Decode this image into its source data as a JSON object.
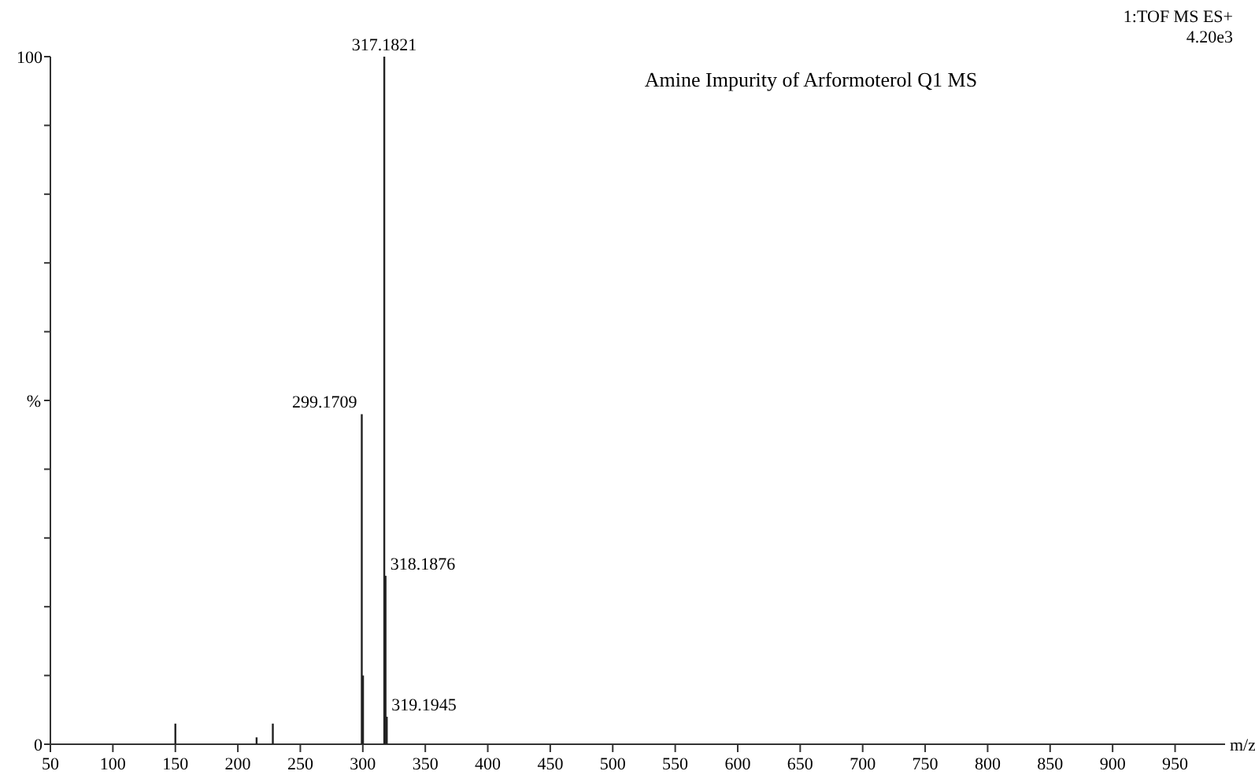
{
  "chart_data": {
    "type": "bar",
    "title": "Amine Impurity of Arformoterol Q1 MS",
    "xlabel": "m/z",
    "ylabel": "%",
    "x": [
      150,
      215,
      228,
      299.1709,
      300.17,
      317.1821,
      318.1876,
      319.1945
    ],
    "values": [
      3,
      1,
      3,
      48,
      10,
      100,
      24.5,
      4
    ],
    "color": "#222222",
    "xlim": [
      50,
      990
    ],
    "xticks": [
      50,
      100,
      150,
      200,
      250,
      300,
      350,
      400,
      450,
      500,
      550,
      600,
      650,
      700,
      750,
      800,
      850,
      900,
      950
    ],
    "ylim": [
      0,
      100
    ],
    "yticks": [
      0,
      {
        "value": 10,
        "label": null
      },
      {
        "value": 20,
        "label": null
      },
      {
        "value": 30,
        "label": null
      },
      {
        "value": 40,
        "label": null
      },
      {
        "value": 50,
        "label": null
      },
      {
        "value": 60,
        "label": null
      },
      {
        "value": 70,
        "label": null
      },
      {
        "value": 80,
        "label": null
      },
      {
        "value": 90,
        "label": null
      },
      100
    ],
    "annotations": [
      {
        "text": "299.1709",
        "x": 299.1709,
        "y": 48
      },
      {
        "text": "317.1821",
        "x": 317.1821,
        "y": 100
      },
      {
        "text": "318.1876",
        "x": 318.1876,
        "y": 24.5
      },
      {
        "text": "319.1945",
        "x": 319.1945,
        "y": 4
      },
      "1:TOF MS ES+",
      "4.20e3"
    ]
  }
}
